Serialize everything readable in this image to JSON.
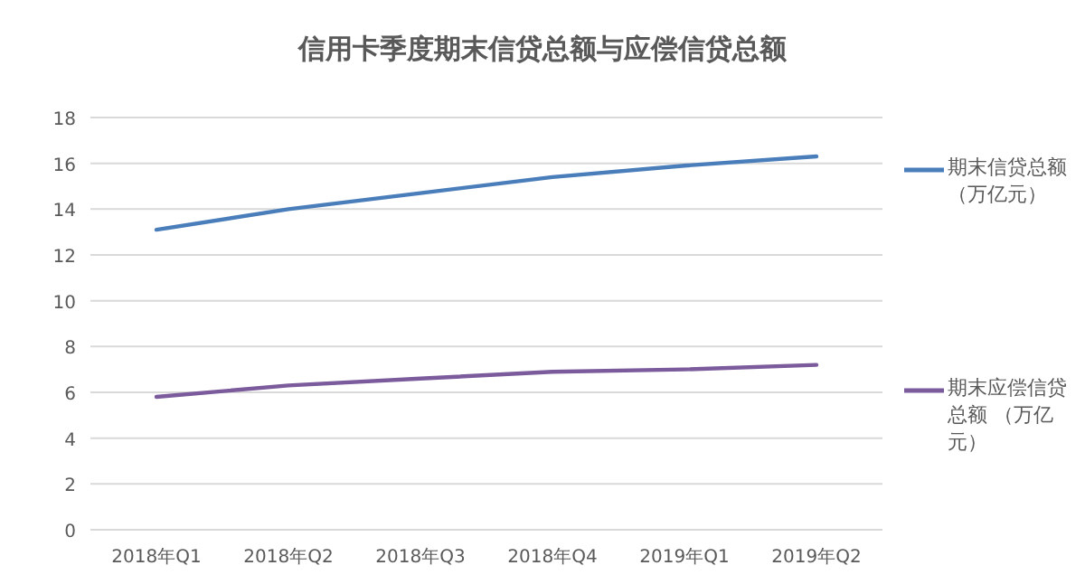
{
  "chart_data": {
    "type": "line",
    "title": "信用卡季度期末信贷总额与应偿信贷总额",
    "categories": [
      "2018年Q1",
      "2018年Q2",
      "2018年Q3",
      "2018年Q4",
      "2019年Q1",
      "2019年Q2"
    ],
    "series": [
      {
        "name": "期末信贷总额（万亿元）",
        "color": "#4a7ebb",
        "values": [
          13.1,
          14.0,
          14.7,
          15.4,
          15.9,
          16.3
        ]
      },
      {
        "name": "期末应偿信贷总额 （万亿元）",
        "color": "#7b5b9c",
        "values": [
          5.8,
          6.3,
          6.6,
          6.9,
          7.0,
          7.2
        ]
      }
    ],
    "ylim": [
      0,
      18
    ],
    "yticks": [
      0,
      2,
      4,
      6,
      8,
      10,
      12,
      14,
      16,
      18
    ],
    "grid": "y",
    "legend": "right",
    "marker": "none"
  }
}
